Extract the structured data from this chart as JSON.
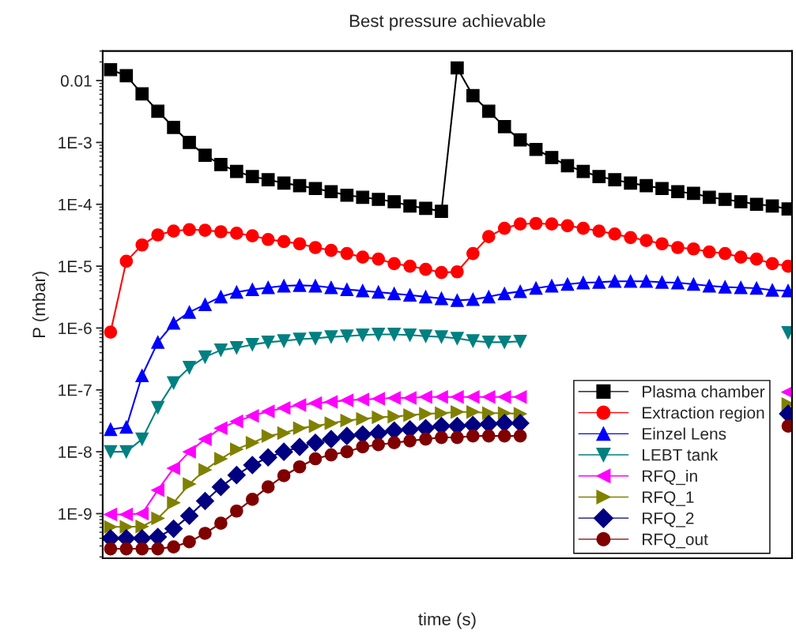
{
  "chart_data": {
    "type": "line",
    "title": "Best pressure achievable",
    "xlabel": "time (s)",
    "ylabel": "P (mbar)",
    "categories": [
      null,
      null,
      null,
      null,
      null,
      null,
      null,
      null,
      null,
      null,
      null,
      null,
      null,
      null,
      null,
      null,
      null,
      null,
      null,
      null,
      null,
      null,
      null,
      null,
      null,
      null,
      null,
      null,
      null,
      null,
      null,
      null,
      null,
      null,
      null,
      null,
      null,
      null,
      null,
      null,
      null,
      null,
      null,
      null
    ],
    "log": true,
    "ylim": [
      1.9e-10,
      0.03
    ],
    "yticks": [
      {
        "value": 1e-09,
        "label": "1E-9"
      },
      {
        "value": 1e-08,
        "label": "1E-8"
      },
      {
        "value": 1e-07,
        "label": "1E-7"
      },
      {
        "value": 1e-06,
        "label": "1E-6"
      },
      {
        "value": 1e-05,
        "label": "1E-5"
      },
      {
        "value": 0.0001,
        "label": "1E-4"
      },
      {
        "value": 0.001,
        "label": "1E-3"
      },
      {
        "value": 0.01,
        "label": "0.01"
      }
    ],
    "legend": "bottom right",
    "series": [
      {
        "name": "Plasma chamber",
        "color": "#000000",
        "marker": "square",
        "values": [
          0.015,
          0.012,
          0.0061,
          0.0032,
          0.00175,
          0.001,
          0.00062,
          0.00044,
          0.00034,
          0.00028,
          0.00025,
          0.00022,
          0.0002,
          0.00018,
          0.00016,
          0.00014,
          0.00013,
          0.00012,
          0.00011,
          9.4e-05,
          8.6e-05,
          7.7e-05,
          0.016,
          0.0057,
          0.0032,
          0.0018,
          0.0011,
          0.00077,
          0.00057,
          0.00042,
          0.00034,
          0.00028,
          0.00025,
          0.00022,
          0.0002,
          0.00018,
          0.00016,
          0.00015,
          0.00013,
          0.00012,
          0.00011,
          0.0001,
          9.4e-05,
          8.4e-05
        ]
      },
      {
        "name": "Extraction region",
        "color": "#ff0000",
        "marker": "circle",
        "values": [
          8.6e-07,
          1.2e-05,
          2.2e-05,
          3.2e-05,
          3.7e-05,
          3.9e-05,
          3.8e-05,
          3.6e-05,
          3.4e-05,
          3.1e-05,
          2.7e-05,
          2.5e-05,
          2.3e-05,
          2e-05,
          1.8e-05,
          1.6e-05,
          1.4e-05,
          1.3e-05,
          1.1e-05,
          1e-05,
          8.9e-06,
          7.9e-06,
          8.1e-06,
          1.6e-05,
          3e-05,
          4.1e-05,
          4.8e-05,
          4.9e-05,
          4.8e-05,
          4.5e-05,
          4.1e-05,
          3.7e-05,
          3.3e-05,
          2.9e-05,
          2.6e-05,
          2.3e-05,
          2e-05,
          1.9e-05,
          1.7e-05,
          1.6e-05,
          1.4e-05,
          1.3e-05,
          1.1e-05,
          1e-05
        ]
      },
      {
        "name": "Einzel Lens",
        "color": "#0000ff",
        "marker": "triangle",
        "values": [
          2.3e-08,
          2.5e-08,
          1.7e-07,
          5.9e-07,
          1.2e-06,
          1.8e-06,
          2.4e-06,
          3.2e-06,
          3.8e-06,
          4.2e-06,
          4.5e-06,
          4.8e-06,
          4.9e-06,
          4.8e-06,
          4.5e-06,
          4.2e-06,
          4e-06,
          3.8e-06,
          3.6e-06,
          3.4e-06,
          3.2e-06,
          3e-06,
          2.8e-06,
          2.9e-06,
          3.2e-06,
          3.6e-06,
          3.9e-06,
          4.4e-06,
          4.8e-06,
          5.1e-06,
          5.4e-06,
          5.5e-06,
          5.7e-06,
          5.7e-06,
          5.7e-06,
          5.5e-06,
          5.4e-06,
          5.1e-06,
          4.8e-06,
          4.6e-06,
          4.5e-06,
          4.4e-06,
          4.1e-06,
          4e-06
        ]
      },
      {
        "name": "LEBT tank",
        "color": "#008080",
        "marker": "triangle-down",
        "values": [
          1e-08,
          1e-08,
          1.6e-08,
          5.2e-08,
          1.3e-07,
          2.3e-07,
          3.4e-07,
          4.4e-07,
          4.8e-07,
          5.4e-07,
          5.9e-07,
          6.2e-07,
          6.6e-07,
          6.8e-07,
          7.2e-07,
          7.4e-07,
          7.7e-07,
          7.9e-07,
          7.9e-07,
          7.7e-07,
          7.4e-07,
          7.2e-07,
          6.8e-07,
          6.2e-07,
          5.9e-07,
          5.9e-07,
          6.1e-07,
          null,
          null,
          null,
          null,
          null,
          null,
          null,
          null,
          null,
          null,
          null,
          null,
          null,
          null,
          null,
          null,
          8.4e-07
        ]
      },
      {
        "name": "RFQ_in",
        "color": "#ff00ff",
        "marker": "triangle-left",
        "values": [
          9.7e-10,
          9.7e-10,
          1e-09,
          2.4e-09,
          5.4e-09,
          1e-08,
          1.6e-08,
          2.4e-08,
          3.1e-08,
          3.8e-08,
          4.5e-08,
          5.1e-08,
          5.7e-08,
          6.1e-08,
          6.4e-08,
          6.8e-08,
          7e-08,
          7.2e-08,
          7.4e-08,
          7.4e-08,
          7.7e-08,
          7.7e-08,
          7.7e-08,
          7.7e-08,
          7.7e-08,
          7.7e-08,
          7.7e-08,
          null,
          null,
          null,
          null,
          null,
          null,
          null,
          null,
          null,
          null,
          null,
          null,
          null,
          null,
          null,
          null,
          9.2e-08
        ]
      },
      {
        "name": "RFQ_1",
        "color": "#808000",
        "marker": "triangle-right",
        "values": [
          6.1e-10,
          6.1e-10,
          6.2e-10,
          8.4e-10,
          1.5e-09,
          3e-09,
          5.1e-09,
          7.7e-09,
          1.1e-08,
          1.4e-08,
          1.8e-08,
          2e-08,
          2.4e-08,
          2.6e-08,
          2.9e-08,
          3.2e-08,
          3.4e-08,
          3.6e-08,
          3.7e-08,
          3.9e-08,
          4.1e-08,
          4.2e-08,
          4.4e-08,
          4.4e-08,
          4.2e-08,
          4.2e-08,
          4.1e-08,
          null,
          null,
          null,
          null,
          null,
          null,
          null,
          null,
          null,
          null,
          null,
          null,
          null,
          null,
          null,
          null,
          5.9e-08
        ]
      },
      {
        "name": "RFQ_2",
        "color": "#000080",
        "marker": "diamond",
        "values": [
          4e-10,
          4e-10,
          4e-10,
          4.2e-10,
          5.7e-10,
          9.2e-10,
          1.6e-09,
          2.7e-09,
          4.2e-09,
          6.1e-09,
          8.1e-09,
          1e-08,
          1.2e-08,
          1.4e-08,
          1.6e-08,
          1.8e-08,
          1.9e-08,
          2e-08,
          2.2e-08,
          2.3e-08,
          2.4e-08,
          2.6e-08,
          2.6e-08,
          2.7e-08,
          2.8e-08,
          2.9e-08,
          2.9e-08,
          null,
          null,
          null,
          null,
          null,
          null,
          null,
          null,
          null,
          null,
          null,
          null,
          null,
          null,
          null,
          null,
          4.1e-08
        ]
      },
      {
        "name": "RFQ_out",
        "color": "#800000",
        "marker": "circle",
        "values": [
          2.7e-10,
          2.7e-10,
          2.7e-10,
          2.7e-10,
          2.9e-10,
          3.5e-10,
          4.8e-10,
          7e-10,
          1.1e-09,
          1.7e-09,
          2.7e-09,
          4.1e-09,
          5.7e-09,
          7.7e-09,
          8.9e-09,
          1e-08,
          1.2e-08,
          1.3e-08,
          1.4e-08,
          1.5e-08,
          1.6e-08,
          1.7e-08,
          1.7e-08,
          1.8e-08,
          1.8e-08,
          1.8e-08,
          1.8e-08,
          null,
          null,
          null,
          null,
          null,
          null,
          null,
          null,
          null,
          null,
          null,
          null,
          null,
          null,
          null,
          null,
          2.6e-08
        ]
      }
    ]
  }
}
